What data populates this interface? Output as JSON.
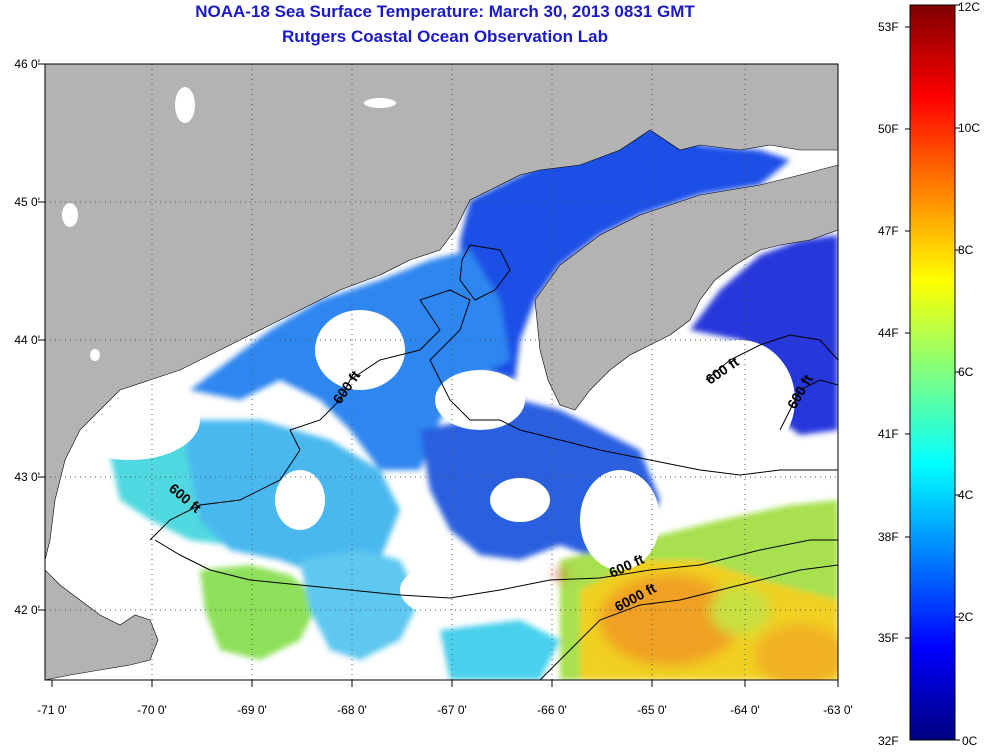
{
  "title": {
    "line1": "NOAA-18 Sea Surface Temperature:  March 30, 2013 0831 GMT",
    "line2": "Rutgers Coastal Ocean Observation Lab"
  },
  "axes": {
    "lat_labels": [
      "46 0'",
      "45 0'",
      "44 0'",
      "43 0'",
      "42 0'"
    ],
    "lon_labels": [
      "-71 0'",
      "-70 0'",
      "-69 0'",
      "-68 0'",
      "-67 0'",
      "-66 0'",
      "-65 0'",
      "-64 0'",
      "-63 0'"
    ]
  },
  "colorbar": {
    "fahrenheit_labels": [
      "53F",
      "50F",
      "47F",
      "44F",
      "41F",
      "38F",
      "35F",
      "32F"
    ],
    "celsius_labels": [
      "12C",
      "10C",
      "8C",
      "6C",
      "4C",
      "2C",
      "0C"
    ],
    "colors": [
      "#00007f",
      "#0000ff",
      "#0080ff",
      "#00ffff",
      "#80ff80",
      "#ffff00",
      "#ff8000",
      "#ff0000",
      "#7f0000"
    ]
  },
  "contour_labels": [
    {
      "text": "600 ft"
    },
    {
      "text": "600 ft"
    },
    {
      "text": "600 ft"
    },
    {
      "text": "600 ft"
    },
    {
      "text": "600 ft"
    },
    {
      "text": "6000 ft"
    }
  ],
  "colors": {
    "land": "#b3b3b3",
    "no_data": "#ffffff",
    "title_text": "#1a1ac8"
  }
}
